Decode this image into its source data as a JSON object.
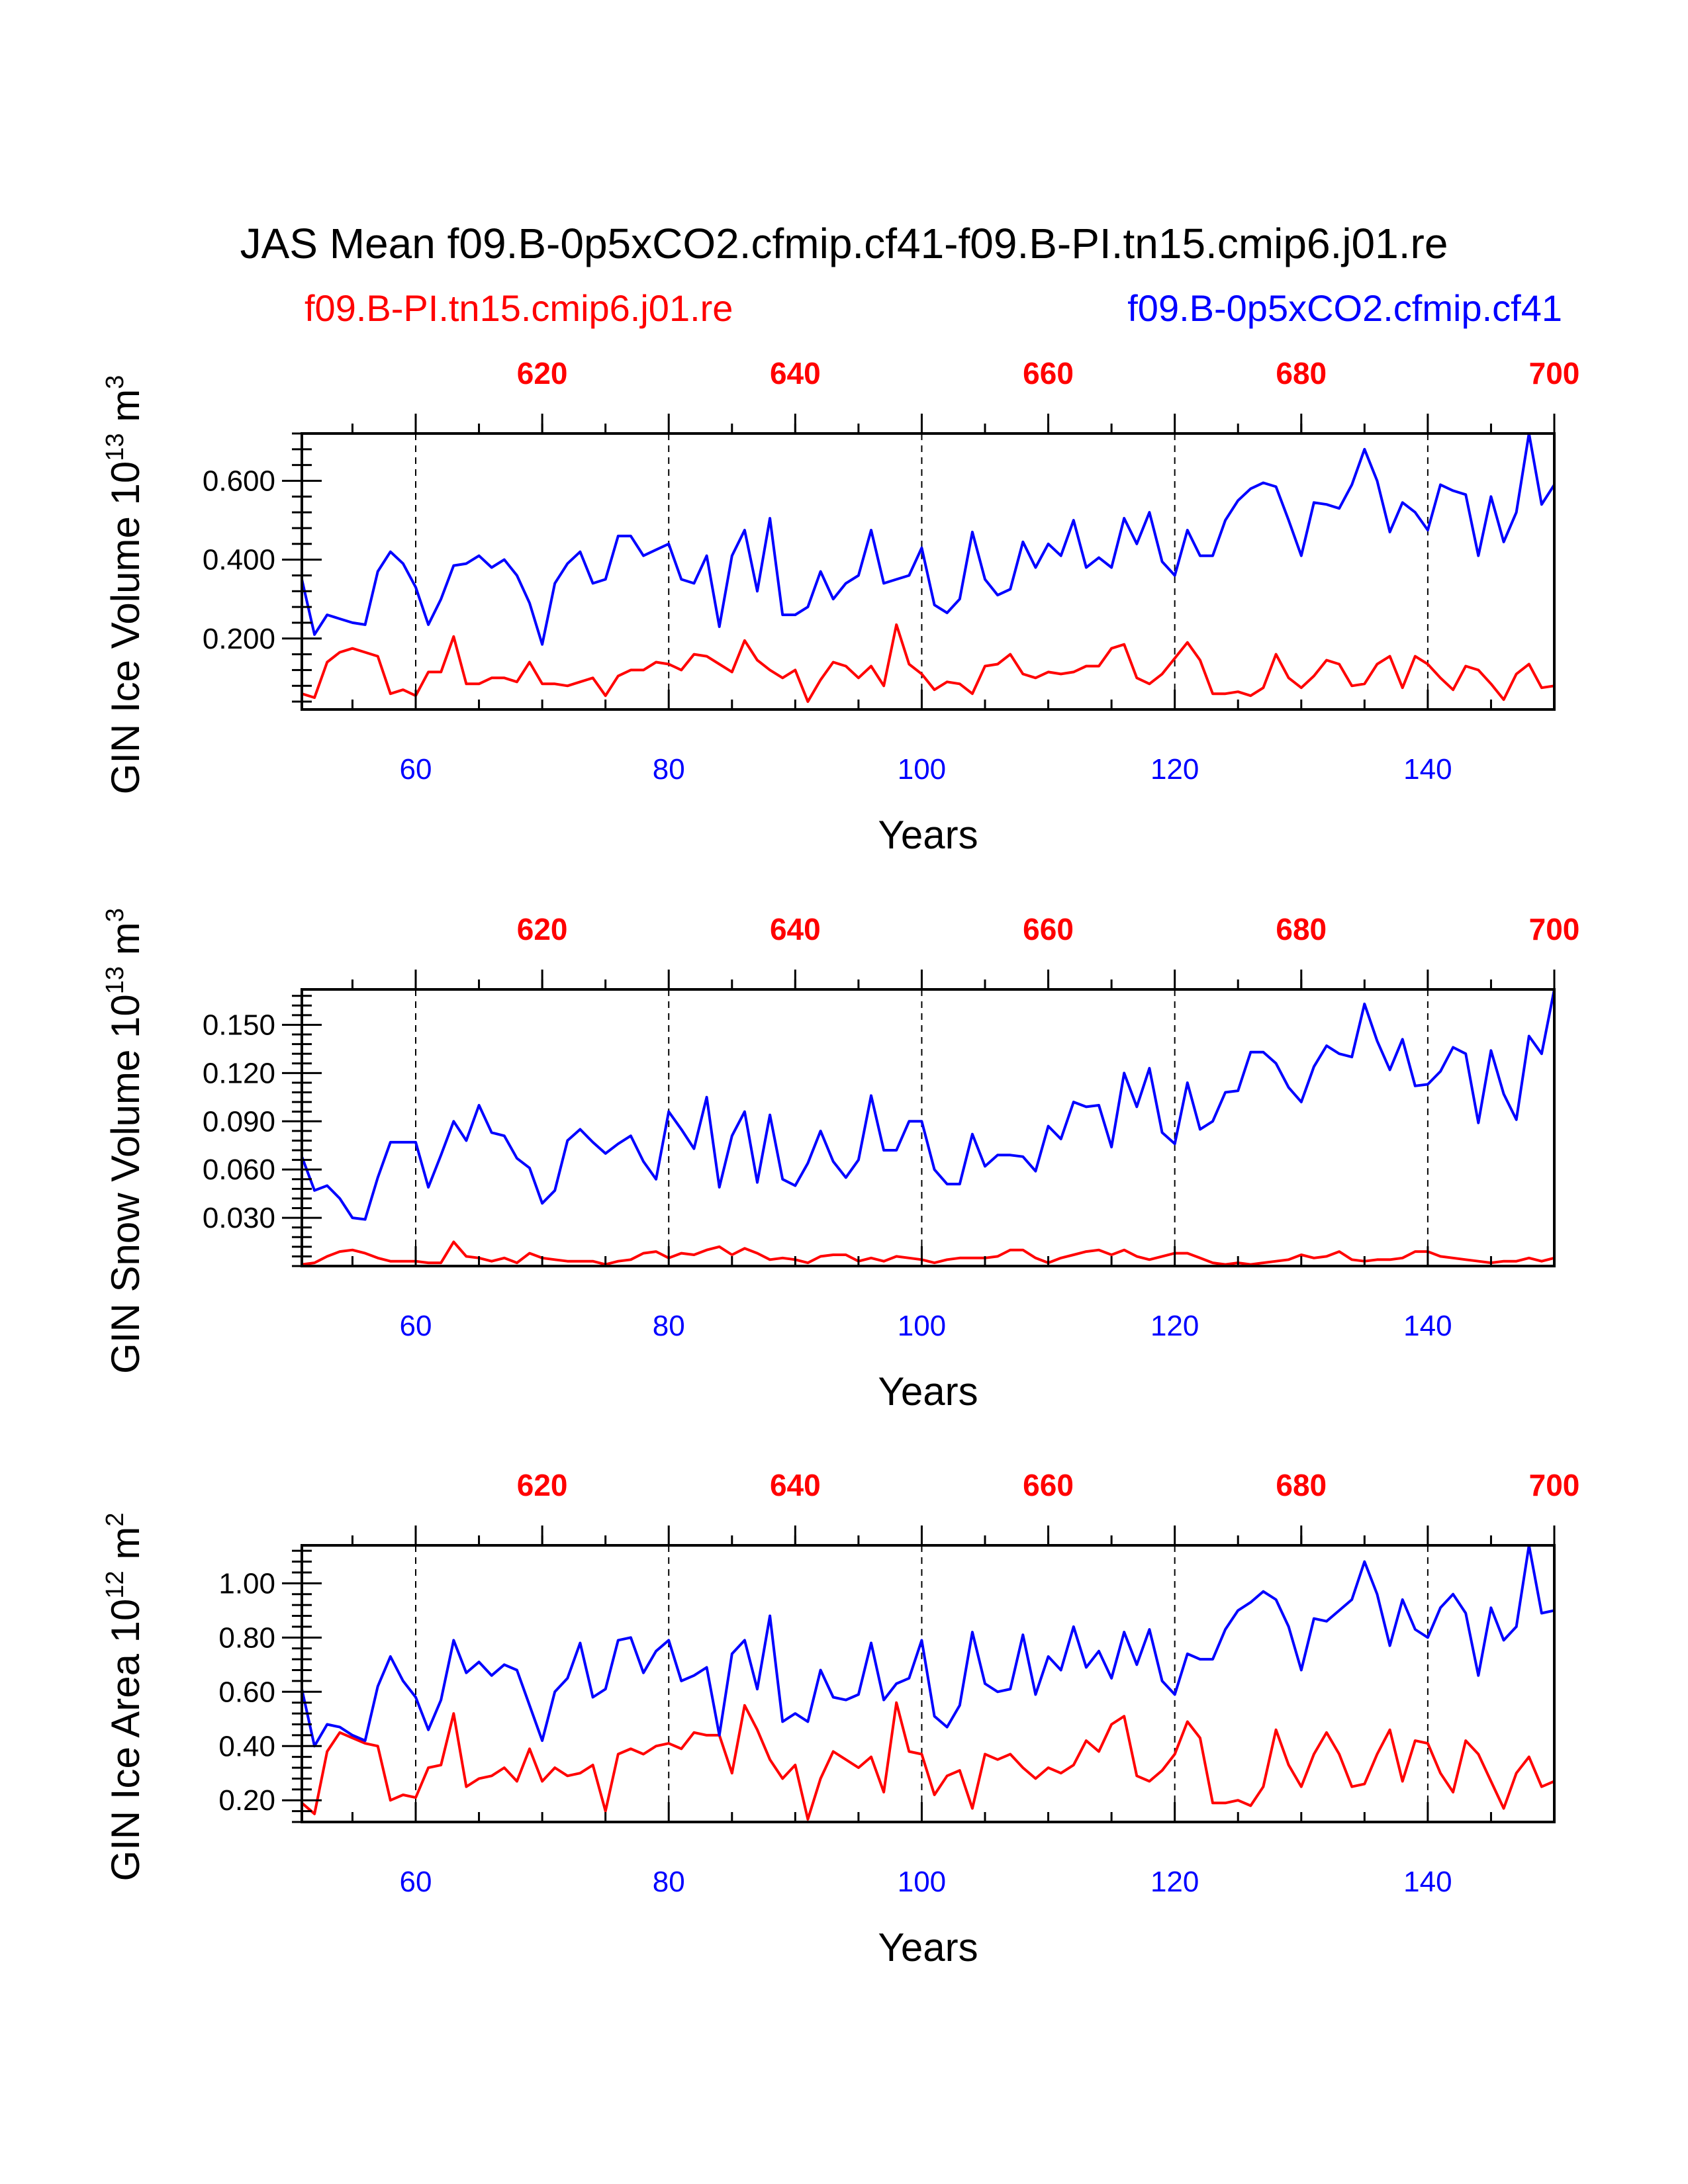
{
  "title": "JAS Mean f09.B-0p5xCO2.cfmip.cf41-f09.B-PI.tn15.cmip6.j01.re",
  "legend": {
    "left": "f09.B-PI.tn15.cmip6.j01.re",
    "right": "f09.B-0p5xCO2.cfmip.cf41"
  },
  "colors": {
    "red": "#ff0000",
    "blue": "#0000ff",
    "axis": "#000000"
  },
  "chart_data": [
    {
      "type": "line",
      "ylabel": "GIN Ice Volume 10",
      "ylabel_sup": "13",
      "ylabel_unit": " m",
      "ylabel_unit_sup": "3",
      "xlabel": "Years",
      "xlim": [
        51,
        150
      ],
      "ylim": [
        0.02,
        0.72
      ],
      "yticks": [
        0.2,
        0.4,
        0.6
      ],
      "ytick_labels": [
        "0.200",
        "0.400",
        "0.600"
      ],
      "xticks": [
        60,
        80,
        100,
        120,
        140
      ],
      "top_tick_labels": [
        "620",
        "640",
        "660",
        "680",
        "700"
      ],
      "series": [
        {
          "name": "f09.B-0p5xCO2.cfmip.cf41",
          "color": "#0000ff",
          "x_start": 51,
          "values": [
            0.35,
            0.21,
            0.26,
            0.25,
            0.24,
            0.235,
            0.37,
            0.42,
            0.39,
            0.33,
            0.235,
            0.3,
            0.385,
            0.39,
            0.41,
            0.38,
            0.4,
            0.36,
            0.29,
            0.185,
            0.34,
            0.39,
            0.42,
            0.34,
            0.35,
            0.46,
            0.46,
            0.41,
            0.425,
            0.44,
            0.35,
            0.34,
            0.41,
            0.23,
            0.41,
            0.475,
            0.32,
            0.505,
            0.26,
            0.26,
            0.28,
            0.37,
            0.3,
            0.34,
            0.36,
            0.475,
            0.34,
            0.35,
            0.36,
            0.43,
            0.285,
            0.265,
            0.3,
            0.47,
            0.35,
            0.31,
            0.325,
            0.445,
            0.38,
            0.44,
            0.41,
            0.5,
            0.38,
            0.405,
            0.38,
            0.505,
            0.44,
            0.52,
            0.395,
            0.36,
            0.475,
            0.41,
            0.41,
            0.5,
            0.55,
            0.58,
            0.595,
            0.585,
            0.5,
            0.41,
            0.545,
            0.54,
            0.53,
            0.59,
            0.68,
            0.6,
            0.47,
            0.545,
            0.52,
            0.475,
            0.59,
            0.575,
            0.565,
            0.41,
            0.56,
            0.445,
            0.52,
            0.72,
            0.54,
            0.59
          ]
        },
        {
          "name": "f09.B-PI.tn15.cmip6.j01.re",
          "color": "#ff0000",
          "x_start": 51,
          "values": [
            0.06,
            0.05,
            0.14,
            0.165,
            0.175,
            0.165,
            0.155,
            0.06,
            0.07,
            0.055,
            0.115,
            0.115,
            0.205,
            0.085,
            0.085,
            0.1,
            0.1,
            0.09,
            0.14,
            0.085,
            0.085,
            0.08,
            0.09,
            0.1,
            0.055,
            0.105,
            0.12,
            0.12,
            0.14,
            0.135,
            0.12,
            0.16,
            0.155,
            0.135,
            0.115,
            0.195,
            0.145,
            0.12,
            0.1,
            0.12,
            0.04,
            0.095,
            0.14,
            0.13,
            0.1,
            0.13,
            0.08,
            0.235,
            0.135,
            0.11,
            0.07,
            0.09,
            0.085,
            0.06,
            0.13,
            0.135,
            0.16,
            0.11,
            0.1,
            0.115,
            0.11,
            0.115,
            0.13,
            0.13,
            0.175,
            0.185,
            0.1,
            0.085,
            0.11,
            0.15,
            0.19,
            0.145,
            0.06,
            0.06,
            0.065,
            0.055,
            0.075,
            0.16,
            0.1,
            0.075,
            0.105,
            0.145,
            0.135,
            0.08,
            0.085,
            0.135,
            0.155,
            0.075,
            0.155,
            0.135,
            0.1,
            0.07,
            0.13,
            0.12,
            0.085,
            0.045,
            0.11,
            0.135,
            0.075,
            0.08
          ]
        }
      ]
    },
    {
      "type": "line",
      "ylabel": "GIN Snow Volume 10",
      "ylabel_sup": "13",
      "ylabel_unit": " m",
      "ylabel_unit_sup": "3",
      "xlabel": "Years",
      "xlim": [
        51,
        150
      ],
      "ylim": [
        0.0,
        0.172
      ],
      "yticks": [
        0.03,
        0.06,
        0.09,
        0.12,
        0.15
      ],
      "ytick_labels": [
        "0.030",
        "0.060",
        "0.090",
        "0.120",
        "0.150"
      ],
      "xticks": [
        60,
        80,
        100,
        120,
        140
      ],
      "top_tick_labels": [
        "620",
        "640",
        "660",
        "680",
        "700"
      ],
      "series": [
        {
          "name": "f09.B-0p5xCO2.cfmip.cf41",
          "color": "#0000ff",
          "x_start": 51,
          "values": [
            0.068,
            0.047,
            0.05,
            0.042,
            0.03,
            0.029,
            0.055,
            0.077,
            0.077,
            0.077,
            0.049,
            0.069,
            0.09,
            0.078,
            0.1,
            0.083,
            0.081,
            0.067,
            0.061,
            0.039,
            0.047,
            0.078,
            0.085,
            0.077,
            0.07,
            0.076,
            0.081,
            0.065,
            0.054,
            0.096,
            0.085,
            0.073,
            0.105,
            0.049,
            0.081,
            0.096,
            0.052,
            0.094,
            0.054,
            0.05,
            0.064,
            0.084,
            0.065,
            0.055,
            0.066,
            0.106,
            0.072,
            0.072,
            0.09,
            0.09,
            0.06,
            0.051,
            0.051,
            0.082,
            0.062,
            0.069,
            0.069,
            0.068,
            0.059,
            0.087,
            0.079,
            0.102,
            0.099,
            0.1,
            0.074,
            0.12,
            0.099,
            0.123,
            0.083,
            0.076,
            0.114,
            0.085,
            0.09,
            0.108,
            0.109,
            0.133,
            0.133,
            0.126,
            0.111,
            0.102,
            0.124,
            0.137,
            0.132,
            0.13,
            0.163,
            0.14,
            0.122,
            0.141,
            0.112,
            0.113,
            0.121,
            0.136,
            0.132,
            0.089,
            0.134,
            0.107,
            0.091,
            0.143,
            0.132,
            0.172
          ]
        },
        {
          "name": "f09.B-PI.tn15.cmip6.j01.re",
          "color": "#ff0000",
          "x_start": 51,
          "values": [
            0.001,
            0.002,
            0.006,
            0.009,
            0.01,
            0.008,
            0.005,
            0.003,
            0.003,
            0.003,
            0.002,
            0.002,
            0.015,
            0.006,
            0.005,
            0.003,
            0.005,
            0.002,
            0.008,
            0.005,
            0.004,
            0.003,
            0.003,
            0.003,
            0.001,
            0.003,
            0.004,
            0.008,
            0.009,
            0.005,
            0.008,
            0.007,
            0.01,
            0.012,
            0.007,
            0.011,
            0.008,
            0.004,
            0.005,
            0.004,
            0.002,
            0.006,
            0.007,
            0.007,
            0.003,
            0.005,
            0.003,
            0.006,
            0.005,
            0.004,
            0.002,
            0.004,
            0.005,
            0.005,
            0.005,
            0.006,
            0.01,
            0.01,
            0.005,
            0.002,
            0.005,
            0.007,
            0.009,
            0.01,
            0.007,
            0.01,
            0.006,
            0.004,
            0.006,
            0.008,
            0.008,
            0.005,
            0.002,
            0.001,
            0.002,
            0.001,
            0.002,
            0.003,
            0.004,
            0.007,
            0.005,
            0.006,
            0.009,
            0.004,
            0.003,
            0.004,
            0.004,
            0.005,
            0.009,
            0.009,
            0.006,
            0.005,
            0.004,
            0.003,
            0.002,
            0.003,
            0.003,
            0.005,
            0.003,
            0.005
          ]
        }
      ]
    },
    {
      "type": "line",
      "ylabel": "GIN Ice Area 10",
      "ylabel_sup": "12",
      "ylabel_unit": " m",
      "ylabel_unit_sup": "2",
      "xlabel": "Years",
      "xlim": [
        51,
        150
      ],
      "ylim": [
        0.12,
        1.14
      ],
      "yticks": [
        0.2,
        0.4,
        0.6,
        0.8,
        1.0
      ],
      "ytick_labels": [
        "0.20",
        "0.40",
        "0.60",
        "0.80",
        "1.00"
      ],
      "xticks": [
        60,
        80,
        100,
        120,
        140
      ],
      "top_tick_labels": [
        "620",
        "640",
        "660",
        "680",
        "700"
      ],
      "series": [
        {
          "name": "f09.B-0p5xCO2.cfmip.cf41",
          "color": "#0000ff",
          "x_start": 51,
          "values": [
            0.61,
            0.4,
            0.48,
            0.47,
            0.44,
            0.42,
            0.62,
            0.73,
            0.64,
            0.58,
            0.46,
            0.57,
            0.79,
            0.67,
            0.71,
            0.66,
            0.7,
            0.68,
            0.55,
            0.42,
            0.6,
            0.65,
            0.78,
            0.58,
            0.61,
            0.79,
            0.8,
            0.67,
            0.75,
            0.79,
            0.64,
            0.66,
            0.69,
            0.44,
            0.74,
            0.79,
            0.61,
            0.88,
            0.49,
            0.52,
            0.49,
            0.68,
            0.58,
            0.57,
            0.59,
            0.78,
            0.57,
            0.63,
            0.65,
            0.79,
            0.51,
            0.47,
            0.55,
            0.82,
            0.63,
            0.6,
            0.61,
            0.81,
            0.59,
            0.73,
            0.68,
            0.84,
            0.69,
            0.75,
            0.65,
            0.82,
            0.7,
            0.83,
            0.64,
            0.59,
            0.74,
            0.72,
            0.72,
            0.83,
            0.9,
            0.93,
            0.97,
            0.94,
            0.84,
            0.68,
            0.87,
            0.86,
            0.9,
            0.94,
            1.08,
            0.96,
            0.77,
            0.94,
            0.83,
            0.8,
            0.91,
            0.96,
            0.89,
            0.66,
            0.91,
            0.79,
            0.84,
            1.14,
            0.89,
            0.9
          ]
        },
        {
          "name": "f09.B-PI.tn15.cmip6.j01.re",
          "color": "#ff0000",
          "x_start": 51,
          "values": [
            0.19,
            0.15,
            0.38,
            0.45,
            0.43,
            0.41,
            0.4,
            0.2,
            0.22,
            0.21,
            0.32,
            0.33,
            0.52,
            0.25,
            0.28,
            0.29,
            0.32,
            0.27,
            0.39,
            0.27,
            0.32,
            0.29,
            0.3,
            0.33,
            0.16,
            0.37,
            0.39,
            0.37,
            0.4,
            0.41,
            0.39,
            0.45,
            0.44,
            0.44,
            0.3,
            0.55,
            0.46,
            0.35,
            0.28,
            0.33,
            0.13,
            0.28,
            0.38,
            0.35,
            0.32,
            0.36,
            0.23,
            0.56,
            0.38,
            0.37,
            0.22,
            0.29,
            0.31,
            0.17,
            0.37,
            0.35,
            0.37,
            0.32,
            0.28,
            0.32,
            0.3,
            0.33,
            0.42,
            0.38,
            0.48,
            0.51,
            0.29,
            0.27,
            0.31,
            0.37,
            0.49,
            0.43,
            0.19,
            0.19,
            0.2,
            0.18,
            0.25,
            0.46,
            0.33,
            0.25,
            0.37,
            0.45,
            0.37,
            0.25,
            0.26,
            0.37,
            0.46,
            0.27,
            0.42,
            0.41,
            0.3,
            0.23,
            0.42,
            0.37,
            0.27,
            0.17,
            0.3,
            0.36,
            0.25,
            0.27
          ]
        }
      ]
    }
  ]
}
